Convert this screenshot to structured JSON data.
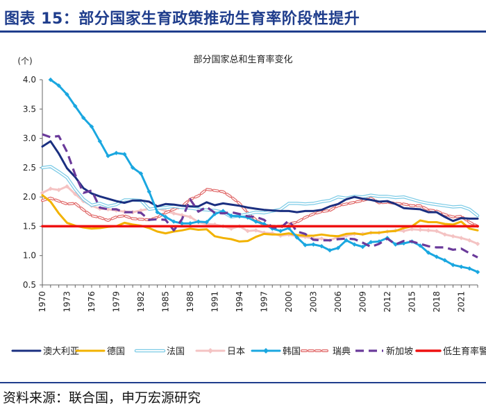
{
  "figure": {
    "title": "图表 15：部分国家生育政策推动生育率阶段性提升",
    "source": "资料来源：联合国，申万宏源研究"
  },
  "chart_data": {
    "type": "line",
    "title": "部分国家总和生育率变化",
    "ylabel": "(个)",
    "xlabel": "",
    "xlim": [
      1970,
      2023
    ],
    "ylim": [
      0.5,
      4.0
    ],
    "y_ticks": [
      "0.5",
      "1.0",
      "1.5",
      "2.0",
      "2.5",
      "3.0",
      "3.5",
      "4.0"
    ],
    "x_ticks": [
      "1970",
      "1973",
      "1976",
      "1979",
      "1982",
      "1985",
      "1988",
      "1991",
      "1994",
      "1997",
      "2000",
      "2003",
      "2006",
      "2009",
      "2012",
      "2015",
      "2018",
      "2021"
    ],
    "series": [
      {
        "name": "澳大利亚",
        "color": "#1a2f80",
        "style": "solid",
        "x": [
          1970,
          1971,
          1972,
          1973,
          1974,
          1975,
          1976,
          1977,
          1978,
          1979,
          1980,
          1981,
          1982,
          1983,
          1984,
          1985,
          1986,
          1987,
          1988,
          1989,
          1990,
          1991,
          1992,
          1993,
          1994,
          1995,
          1996,
          1997,
          1998,
          1999,
          2000,
          2001,
          2002,
          2003,
          2004,
          2005,
          2006,
          2007,
          2008,
          2009,
          2010,
          2011,
          2012,
          2013,
          2014,
          2015,
          2016,
          2017,
          2018,
          2019,
          2020,
          2021,
          2022,
          2023
        ],
        "y": [
          2.86,
          2.95,
          2.74,
          2.49,
          2.34,
          2.15,
          2.06,
          2.01,
          1.97,
          1.93,
          1.9,
          1.94,
          1.94,
          1.92,
          1.84,
          1.88,
          1.87,
          1.85,
          1.84,
          1.84,
          1.91,
          1.86,
          1.89,
          1.87,
          1.85,
          1.82,
          1.8,
          1.78,
          1.77,
          1.76,
          1.76,
          1.74,
          1.76,
          1.76,
          1.78,
          1.84,
          1.88,
          1.96,
          2.0,
          1.97,
          1.95,
          1.92,
          1.93,
          1.88,
          1.81,
          1.8,
          1.79,
          1.74,
          1.74,
          1.66,
          1.59,
          1.64,
          1.63,
          1.63
        ]
      },
      {
        "name": "德国",
        "color": "#f2b200",
        "style": "solid",
        "x": [
          1970,
          1971,
          1972,
          1973,
          1974,
          1975,
          1976,
          1977,
          1978,
          1979,
          1980,
          1981,
          1982,
          1983,
          1984,
          1985,
          1986,
          1987,
          1988,
          1989,
          1990,
          1991,
          1992,
          1993,
          1994,
          1995,
          1996,
          1997,
          1998,
          1999,
          2000,
          2001,
          2002,
          2003,
          2004,
          2005,
          2006,
          2007,
          2008,
          2009,
          2010,
          2011,
          2012,
          2013,
          2014,
          2015,
          2016,
          2017,
          2018,
          2019,
          2020,
          2021,
          2022,
          2023
        ],
        "y": [
          2.03,
          1.92,
          1.72,
          1.56,
          1.51,
          1.48,
          1.46,
          1.47,
          1.49,
          1.5,
          1.56,
          1.53,
          1.51,
          1.47,
          1.41,
          1.38,
          1.41,
          1.43,
          1.46,
          1.44,
          1.45,
          1.33,
          1.3,
          1.28,
          1.24,
          1.25,
          1.32,
          1.37,
          1.36,
          1.36,
          1.38,
          1.35,
          1.34,
          1.34,
          1.36,
          1.34,
          1.33,
          1.37,
          1.38,
          1.36,
          1.39,
          1.39,
          1.41,
          1.42,
          1.47,
          1.5,
          1.6,
          1.57,
          1.57,
          1.54,
          1.53,
          1.58,
          1.46,
          1.43
        ]
      },
      {
        "name": "法国",
        "color": "#7ccbe6",
        "style": "double",
        "x": [
          1970,
          1971,
          1972,
          1973,
          1974,
          1975,
          1976,
          1977,
          1978,
          1979,
          1980,
          1981,
          1982,
          1983,
          1984,
          1985,
          1986,
          1987,
          1988,
          1989,
          1990,
          1991,
          1992,
          1993,
          1994,
          1995,
          1996,
          1997,
          1998,
          1999,
          2000,
          2001,
          2002,
          2003,
          2004,
          2005,
          2006,
          2007,
          2008,
          2009,
          2010,
          2011,
          2012,
          2013,
          2014,
          2015,
          2016,
          2017,
          2018,
          2019,
          2020,
          2021,
          2022,
          2023
        ],
        "y": [
          2.5,
          2.52,
          2.43,
          2.33,
          2.13,
          1.96,
          1.86,
          1.89,
          1.84,
          1.87,
          1.95,
          1.95,
          1.94,
          1.79,
          1.81,
          1.82,
          1.84,
          1.82,
          1.81,
          1.79,
          1.78,
          1.77,
          1.74,
          1.66,
          1.68,
          1.71,
          1.74,
          1.73,
          1.76,
          1.79,
          1.89,
          1.89,
          1.88,
          1.89,
          1.92,
          1.94,
          2.0,
          1.98,
          2.01,
          2.0,
          2.03,
          2.01,
          2.01,
          1.99,
          2.0,
          1.96,
          1.92,
          1.89,
          1.87,
          1.85,
          1.83,
          1.84,
          1.79,
          1.68
        ]
      },
      {
        "name": "日本",
        "color": "#f4c3c3",
        "style": "marker",
        "x": [
          1970,
          1971,
          1972,
          1973,
          1974,
          1975,
          1976,
          1977,
          1978,
          1979,
          1980,
          1981,
          1982,
          1983,
          1984,
          1985,
          1986,
          1987,
          1988,
          1989,
          1990,
          1991,
          1992,
          1993,
          1994,
          1995,
          1996,
          1997,
          1998,
          1999,
          2000,
          2001,
          2002,
          2003,
          2004,
          2005,
          2006,
          2007,
          2008,
          2009,
          2010,
          2011,
          2012,
          2013,
          2014,
          2015,
          2016,
          2017,
          2018,
          2019,
          2020,
          2021,
          2022,
          2023
        ],
        "y": [
          2.07,
          2.14,
          2.12,
          2.18,
          2.05,
          1.93,
          1.85,
          1.8,
          1.79,
          1.77,
          1.75,
          1.74,
          1.77,
          1.8,
          1.81,
          1.76,
          1.72,
          1.69,
          1.66,
          1.57,
          1.54,
          1.53,
          1.5,
          1.46,
          1.5,
          1.42,
          1.43,
          1.39,
          1.38,
          1.34,
          1.36,
          1.33,
          1.32,
          1.29,
          1.29,
          1.26,
          1.32,
          1.34,
          1.37,
          1.37,
          1.39,
          1.39,
          1.41,
          1.43,
          1.42,
          1.45,
          1.44,
          1.43,
          1.42,
          1.36,
          1.33,
          1.3,
          1.26,
          1.2
        ]
      },
      {
        "name": "韩国",
        "color": "#1aa7e0",
        "style": "marker",
        "x": [
          1971,
          1972,
          1973,
          1974,
          1975,
          1976,
          1977,
          1978,
          1979,
          1980,
          1981,
          1982,
          1983,
          1984,
          1985,
          1986,
          1987,
          1988,
          1989,
          1990,
          1991,
          1992,
          1993,
          1994,
          1995,
          1996,
          1997,
          1998,
          1999,
          2000,
          2001,
          2002,
          2003,
          2004,
          2005,
          2006,
          2007,
          2008,
          2009,
          2010,
          2011,
          2012,
          2013,
          2014,
          2015,
          2016,
          2017,
          2018,
          2019,
          2020,
          2021,
          2022,
          2023
        ],
        "y": [
          4.0,
          3.9,
          3.75,
          3.55,
          3.35,
          3.2,
          2.95,
          2.7,
          2.75,
          2.73,
          2.5,
          2.4,
          2.09,
          1.74,
          1.66,
          1.58,
          1.55,
          1.55,
          1.58,
          1.57,
          1.71,
          1.76,
          1.68,
          1.67,
          1.65,
          1.58,
          1.54,
          1.46,
          1.42,
          1.47,
          1.31,
          1.18,
          1.19,
          1.16,
          1.09,
          1.13,
          1.26,
          1.19,
          1.15,
          1.23,
          1.24,
          1.3,
          1.19,
          1.21,
          1.24,
          1.17,
          1.05,
          0.98,
          0.92,
          0.84,
          0.81,
          0.78,
          0.72
        ]
      },
      {
        "name": "瑞典",
        "color": "#e06868",
        "style": "double-dash",
        "x": [
          1970,
          1971,
          1972,
          1973,
          1974,
          1975,
          1976,
          1977,
          1978,
          1979,
          1980,
          1981,
          1982,
          1983,
          1984,
          1985,
          1986,
          1987,
          1988,
          1989,
          1990,
          1991,
          1992,
          1993,
          1994,
          1995,
          1996,
          1997,
          1998,
          1999,
          2000,
          2001,
          2002,
          2003,
          2004,
          2005,
          2006,
          2007,
          2008,
          2009,
          2010,
          2011,
          2012,
          2013,
          2014,
          2015,
          2016,
          2017,
          2018,
          2019,
          2020,
          2021,
          2022,
          2023
        ],
        "y": [
          1.94,
          1.98,
          1.93,
          1.88,
          1.89,
          1.78,
          1.68,
          1.65,
          1.6,
          1.66,
          1.68,
          1.63,
          1.62,
          1.61,
          1.65,
          1.73,
          1.79,
          1.84,
          1.96,
          2.02,
          2.13,
          2.11,
          2.09,
          2.0,
          1.89,
          1.73,
          1.61,
          1.52,
          1.5,
          1.5,
          1.54,
          1.57,
          1.65,
          1.71,
          1.75,
          1.77,
          1.85,
          1.88,
          1.91,
          1.94,
          1.98,
          1.9,
          1.91,
          1.89,
          1.88,
          1.85,
          1.85,
          1.78,
          1.76,
          1.7,
          1.66,
          1.67,
          1.57,
          1.5
        ]
      },
      {
        "name": "新加坡",
        "color": "#6a3a9a",
        "style": "dash",
        "x": [
          1970,
          1971,
          1972,
          1973,
          1974,
          1975,
          1976,
          1977,
          1978,
          1979,
          1980,
          1981,
          1982,
          1983,
          1984,
          1985,
          1986,
          1987,
          1988,
          1989,
          1990,
          1991,
          1992,
          1993,
          1994,
          1995,
          1996,
          1997,
          1998,
          1999,
          2000,
          2001,
          2002,
          2003,
          2004,
          2005,
          2006,
          2007,
          2008,
          2009,
          2010,
          2011,
          2012,
          2013,
          2014,
          2015,
          2016,
          2017,
          2018,
          2019,
          2020,
          2021,
          2022,
          2023
        ],
        "y": [
          3.07,
          3.02,
          3.04,
          2.77,
          2.38,
          2.07,
          2.11,
          1.82,
          1.79,
          1.79,
          1.74,
          1.74,
          1.73,
          1.61,
          1.62,
          1.61,
          1.43,
          1.62,
          1.96,
          1.75,
          1.83,
          1.73,
          1.72,
          1.74,
          1.71,
          1.67,
          1.66,
          1.61,
          1.48,
          1.47,
          1.6,
          1.41,
          1.37,
          1.27,
          1.26,
          1.26,
          1.28,
          1.29,
          1.28,
          1.22,
          1.15,
          1.2,
          1.29,
          1.19,
          1.25,
          1.24,
          1.2,
          1.16,
          1.14,
          1.14,
          1.1,
          1.12,
          1.04,
          0.97
        ]
      },
      {
        "name": "低生育率警戒线",
        "color": "#ee1111",
        "style": "thick",
        "x": [
          1970,
          2023
        ],
        "y": [
          1.5,
          1.5
        ]
      }
    ]
  }
}
